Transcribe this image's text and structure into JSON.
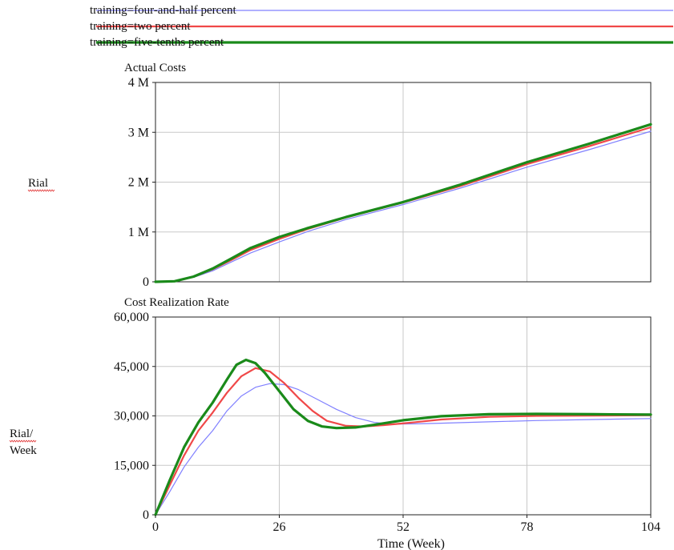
{
  "legend": [
    {
      "label": "training=four-and-half percent",
      "color": "#8080ff"
    },
    {
      "label": "training=two percent",
      "color": "#f04848"
    },
    {
      "label": "training=five-tenths percent",
      "color": "#1a8a1a"
    }
  ],
  "xaxis": {
    "label": "Time (Week)",
    "ticks": [
      0,
      26,
      52,
      78,
      104
    ],
    "tick_labels": [
      "0",
      "26",
      "52",
      "78",
      "104"
    ],
    "range": [
      0,
      104
    ]
  },
  "chart_data": [
    {
      "type": "line",
      "title": "Actual Costs",
      "ylabel": [
        "Rial"
      ],
      "ylim": [
        0,
        4000000
      ],
      "yticks": [
        0,
        1000000,
        2000000,
        3000000,
        4000000
      ],
      "ytick_labels": [
        "0",
        "1 M",
        "2 M",
        "3 M",
        "4 M"
      ],
      "xlim": [
        0,
        104
      ],
      "grid": true,
      "series": [
        {
          "name": "training=four-and-half percent",
          "color": "#8080ff",
          "width": 1.2,
          "points": [
            [
              0,
              0
            ],
            [
              4,
              10000
            ],
            [
              8,
              90000
            ],
            [
              12,
              220000
            ],
            [
              16,
              400000
            ],
            [
              20,
              580000
            ],
            [
              26,
              800000
            ],
            [
              32,
              1010000
            ],
            [
              40,
              1250000
            ],
            [
              52,
              1550000
            ],
            [
              64,
              1880000
            ],
            [
              78,
              2300000
            ],
            [
              91,
              2650000
            ],
            [
              104,
              3020000
            ]
          ]
        },
        {
          "name": "training=two percent",
          "color": "#f04848",
          "width": 2.2,
          "points": [
            [
              0,
              0
            ],
            [
              4,
              12000
            ],
            [
              8,
              100000
            ],
            [
              12,
              250000
            ],
            [
              16,
              440000
            ],
            [
              20,
              640000
            ],
            [
              26,
              860000
            ],
            [
              32,
              1060000
            ],
            [
              40,
              1290000
            ],
            [
              52,
              1590000
            ],
            [
              64,
              1920000
            ],
            [
              78,
              2360000
            ],
            [
              91,
              2720000
            ],
            [
              104,
              3100000
            ]
          ]
        },
        {
          "name": "training=five-tenths percent",
          "color": "#1a8a1a",
          "width": 3.2,
          "points": [
            [
              0,
              0
            ],
            [
              4,
              12000
            ],
            [
              8,
              105000
            ],
            [
              12,
              265000
            ],
            [
              16,
              470000
            ],
            [
              20,
              680000
            ],
            [
              26,
              900000
            ],
            [
              32,
              1080000
            ],
            [
              40,
              1300000
            ],
            [
              52,
              1600000
            ],
            [
              64,
              1950000
            ],
            [
              78,
              2400000
            ],
            [
              91,
              2770000
            ],
            [
              104,
              3160000
            ]
          ]
        }
      ]
    },
    {
      "type": "line",
      "title": "Cost Realization Rate",
      "ylabel": [
        "Rial/",
        "Week"
      ],
      "ylim": [
        0,
        60000
      ],
      "yticks": [
        0,
        15000,
        30000,
        45000,
        60000
      ],
      "ytick_labels": [
        "0",
        "15,000",
        "30,000",
        "45,000",
        "60,000"
      ],
      "xlim": [
        0,
        104
      ],
      "grid": true,
      "series": [
        {
          "name": "training=four-and-half percent",
          "color": "#8080ff",
          "width": 1.2,
          "points": [
            [
              0,
              0
            ],
            [
              3,
              7000
            ],
            [
              6,
              14500
            ],
            [
              9,
              20500
            ],
            [
              12,
              25500
            ],
            [
              15,
              31500
            ],
            [
              18,
              36000
            ],
            [
              21,
              38700
            ],
            [
              24,
              39800
            ],
            [
              27,
              39500
            ],
            [
              30,
              38000
            ],
            [
              34,
              35000
            ],
            [
              38,
              32000
            ],
            [
              42,
              29500
            ],
            [
              46,
              28000
            ],
            [
              50,
              27500
            ],
            [
              55,
              27600
            ],
            [
              60,
              27800
            ],
            [
              70,
              28200
            ],
            [
              80,
              28600
            ],
            [
              92,
              28900
            ],
            [
              104,
              29200
            ]
          ]
        },
        {
          "name": "training=two percent",
          "color": "#f04848",
          "width": 2.2,
          "points": [
            [
              0,
              0
            ],
            [
              3,
              9000
            ],
            [
              6,
              18000
            ],
            [
              9,
              25500
            ],
            [
              12,
              31000
            ],
            [
              15,
              37000
            ],
            [
              18,
              42000
            ],
            [
              21,
              44500
            ],
            [
              24,
              43500
            ],
            [
              27,
              40000
            ],
            [
              30,
              35500
            ],
            [
              33,
              31500
            ],
            [
              36,
              28500
            ],
            [
              40,
              27000
            ],
            [
              44,
              26800
            ],
            [
              48,
              27200
            ],
            [
              54,
              28000
            ],
            [
              60,
              28900
            ],
            [
              70,
              29700
            ],
            [
              80,
              30000
            ],
            [
              92,
              30100
            ],
            [
              104,
              30200
            ]
          ]
        },
        {
          "name": "training=five-tenths percent",
          "color": "#1a8a1a",
          "width": 3.2,
          "points": [
            [
              0,
              0
            ],
            [
              3,
              10500
            ],
            [
              6,
              20500
            ],
            [
              9,
              28000
            ],
            [
              12,
              34000
            ],
            [
              15,
              41000
            ],
            [
              17,
              45500
            ],
            [
              19,
              47000
            ],
            [
              21,
              46000
            ],
            [
              23,
              43000
            ],
            [
              26,
              37500
            ],
            [
              29,
              32000
            ],
            [
              32,
              28500
            ],
            [
              35,
              26800
            ],
            [
              38,
              26300
            ],
            [
              42,
              26500
            ],
            [
              46,
              27300
            ],
            [
              52,
              28700
            ],
            [
              60,
              29900
            ],
            [
              70,
              30500
            ],
            [
              80,
              30600
            ],
            [
              92,
              30500
            ],
            [
              104,
              30400
            ]
          ]
        }
      ]
    }
  ]
}
